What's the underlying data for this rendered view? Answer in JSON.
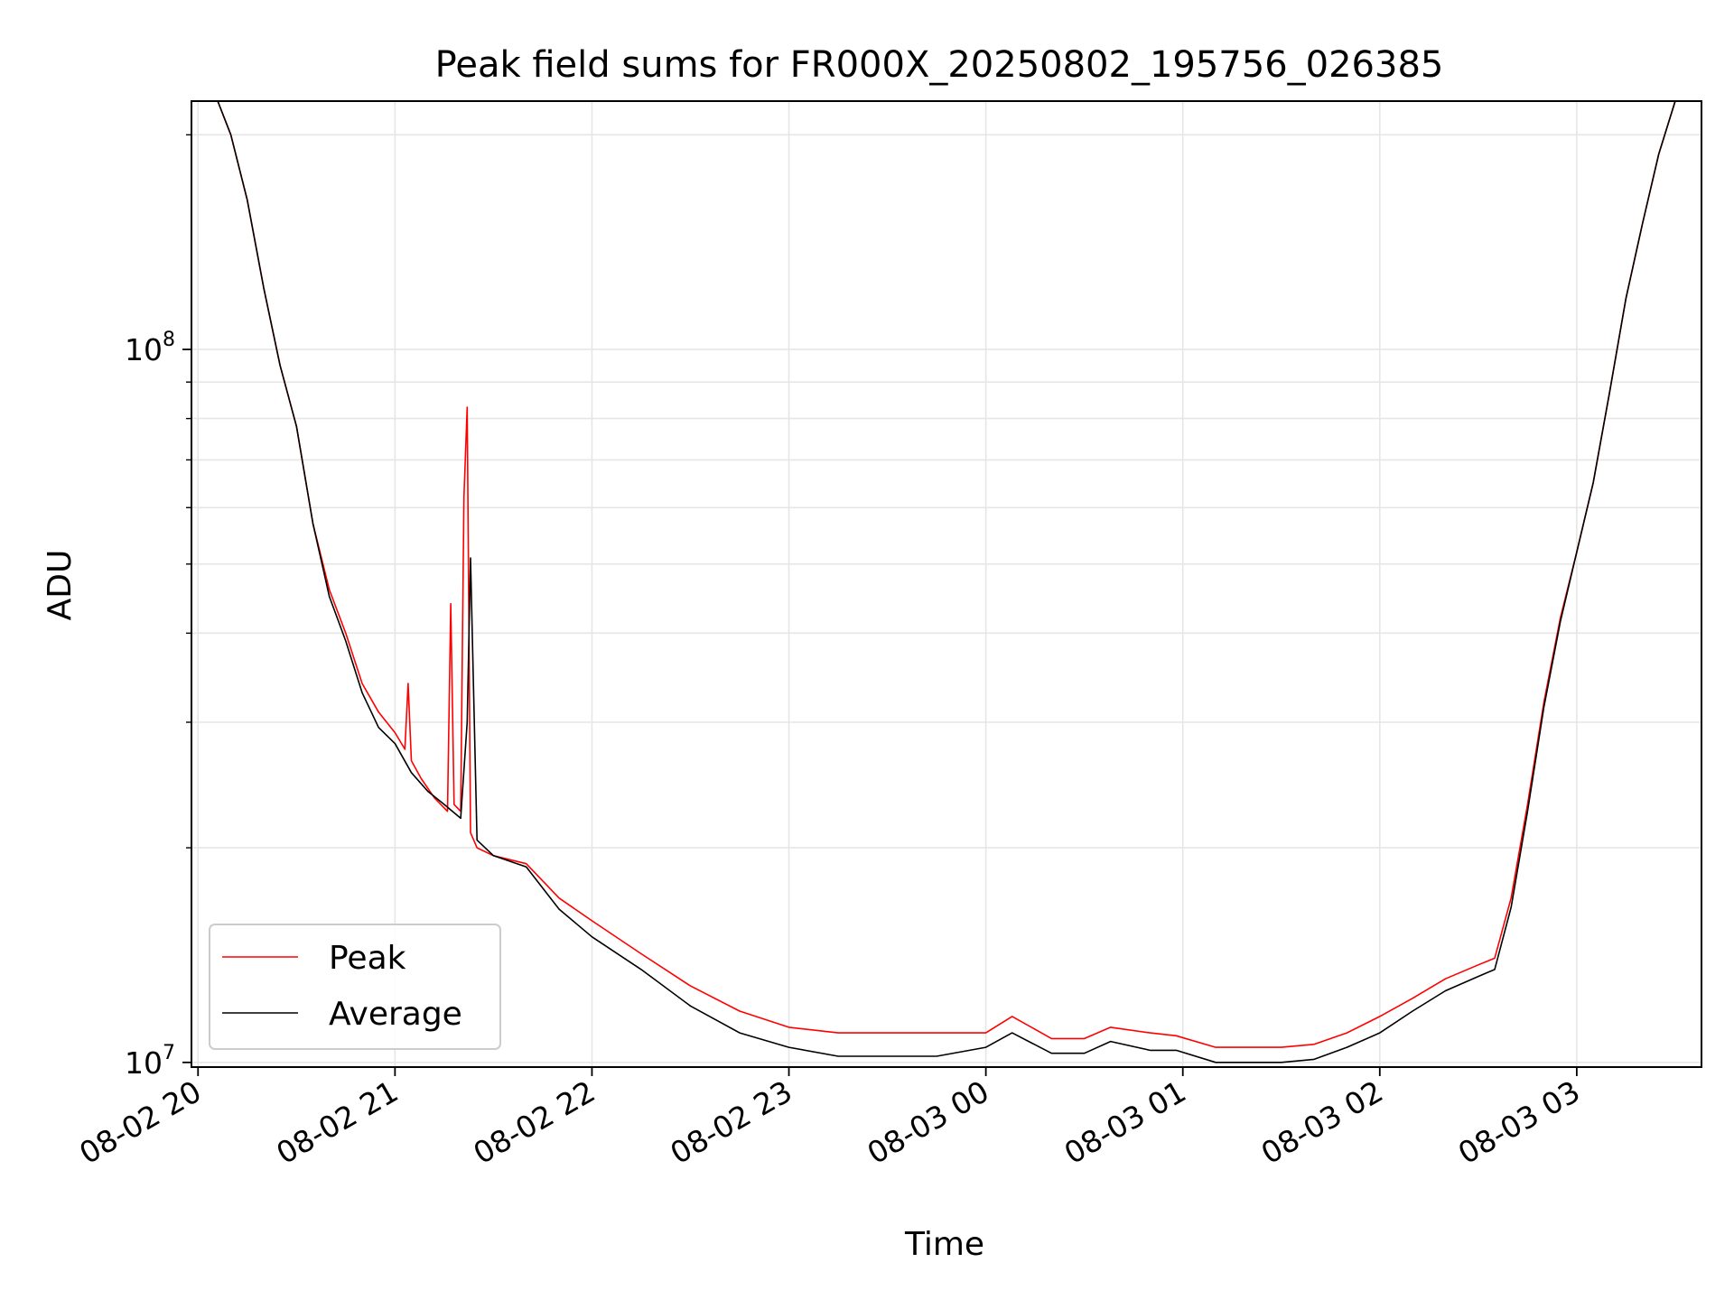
{
  "chart_data": {
    "type": "line",
    "title": "Peak field sums for FR000X_20250802_195756_026385",
    "xlabel": "Time",
    "ylabel": "ADU",
    "y_scale": "log",
    "ylim": [
      9850000,
      223000000
    ],
    "xlim": [
      "2025-08-02 19:58",
      "2025-08-03 03:38"
    ],
    "grid": true,
    "legend_position": "lower-left",
    "x_ticks": [
      "08-02 20",
      "08-02 21",
      "08-02 22",
      "08-02 23",
      "08-03 00",
      "08-03 01",
      "08-03 02",
      "08-03 03"
    ],
    "x_tick_times": [
      "2025-08-02 20:00",
      "2025-08-02 21:00",
      "2025-08-02 22:00",
      "2025-08-02 23:00",
      "2025-08-03 00:00",
      "2025-08-03 01:00",
      "2025-08-03 02:00",
      "2025-08-03 03:00"
    ],
    "y_tick_labels": [
      {
        "base": "10",
        "exp": "7",
        "value": 10000000
      },
      {
        "base": "10",
        "exp": "8",
        "value": 100000000
      }
    ],
    "series": [
      {
        "name": "Peak",
        "color": "#ff0000",
        "x": [
          "2025-08-02 19:58",
          "2025-08-02 20:06",
          "2025-08-02 20:10",
          "2025-08-02 20:15",
          "2025-08-02 20:20",
          "2025-08-02 20:25",
          "2025-08-02 20:30",
          "2025-08-02 20:35",
          "2025-08-02 20:40",
          "2025-08-02 20:45",
          "2025-08-02 20:50",
          "2025-08-02 20:55",
          "2025-08-02 21:00",
          "2025-08-02 21:03",
          "2025-08-02 21:04",
          "2025-08-02 21:05",
          "2025-08-02 21:08",
          "2025-08-02 21:12",
          "2025-08-02 21:16",
          "2025-08-02 21:17",
          "2025-08-02 21:18",
          "2025-08-02 21:20",
          "2025-08-02 21:21",
          "2025-08-02 21:22",
          "2025-08-02 21:23",
          "2025-08-02 21:25",
          "2025-08-02 21:30",
          "2025-08-02 21:40",
          "2025-08-02 21:50",
          "2025-08-02 22:00",
          "2025-08-02 22:15",
          "2025-08-02 22:30",
          "2025-08-02 22:45",
          "2025-08-02 23:00",
          "2025-08-02 23:15",
          "2025-08-02 23:30",
          "2025-08-02 23:45",
          "2025-08-03 00:00",
          "2025-08-03 00:08",
          "2025-08-03 00:20",
          "2025-08-03 00:30",
          "2025-08-03 00:38",
          "2025-08-03 00:50",
          "2025-08-03 00:58",
          "2025-08-03 01:10",
          "2025-08-03 01:20",
          "2025-08-03 01:30",
          "2025-08-03 01:40",
          "2025-08-03 01:50",
          "2025-08-03 02:00",
          "2025-08-03 02:10",
          "2025-08-03 02:20",
          "2025-08-03 02:30",
          "2025-08-03 02:35",
          "2025-08-03 02:40",
          "2025-08-03 02:45",
          "2025-08-03 02:50",
          "2025-08-03 02:55",
          "2025-08-03 03:00",
          "2025-08-03 03:05",
          "2025-08-03 03:10",
          "2025-08-03 03:15",
          "2025-08-03 03:20",
          "2025-08-03 03:25",
          "2025-08-03 03:30",
          "2025-08-03 03:38"
        ],
        "values": [
          223000000,
          223000000,
          200000000,
          162000000,
          122000000,
          95000000,
          78000000,
          57000000,
          46000000,
          40000000,
          34000000,
          31000000,
          29000000,
          27500000,
          34000000,
          26500000,
          25000000,
          23500000,
          22500000,
          44000000,
          23000000,
          22500000,
          62000000,
          83000000,
          21000000,
          20000000,
          19500000,
          19000000,
          17000000,
          15800000,
          14200000,
          12800000,
          11800000,
          11200000,
          11000000,
          11000000,
          11000000,
          11000000,
          11600000,
          10800000,
          10800000,
          11200000,
          11000000,
          10900000,
          10500000,
          10500000,
          10500000,
          10600000,
          11000000,
          11600000,
          12300000,
          13100000,
          13700000,
          14000000,
          17000000,
          23000000,
          32000000,
          42000000,
          52000000,
          65000000,
          87000000,
          118000000,
          150000000,
          188000000,
          223000000,
          223000000
        ]
      },
      {
        "name": "Average",
        "color": "#000000",
        "x": [
          "2025-08-02 19:58",
          "2025-08-02 20:06",
          "2025-08-02 20:10",
          "2025-08-02 20:15",
          "2025-08-02 20:20",
          "2025-08-02 20:25",
          "2025-08-02 20:30",
          "2025-08-02 20:35",
          "2025-08-02 20:40",
          "2025-08-02 20:45",
          "2025-08-02 20:50",
          "2025-08-02 20:55",
          "2025-08-02 21:00",
          "2025-08-02 21:05",
          "2025-08-02 21:10",
          "2025-08-02 21:15",
          "2025-08-02 21:20",
          "2025-08-02 21:22",
          "2025-08-02 21:23",
          "2025-08-02 21:25",
          "2025-08-02 21:30",
          "2025-08-02 21:40",
          "2025-08-02 21:50",
          "2025-08-02 22:00",
          "2025-08-02 22:15",
          "2025-08-02 22:30",
          "2025-08-02 22:45",
          "2025-08-02 23:00",
          "2025-08-02 23:15",
          "2025-08-02 23:30",
          "2025-08-02 23:45",
          "2025-08-03 00:00",
          "2025-08-03 00:08",
          "2025-08-03 00:20",
          "2025-08-03 00:30",
          "2025-08-03 00:38",
          "2025-08-03 00:50",
          "2025-08-03 00:58",
          "2025-08-03 01:10",
          "2025-08-03 01:20",
          "2025-08-03 01:30",
          "2025-08-03 01:40",
          "2025-08-03 01:50",
          "2025-08-03 02:00",
          "2025-08-03 02:10",
          "2025-08-03 02:20",
          "2025-08-03 02:30",
          "2025-08-03 02:35",
          "2025-08-03 02:40",
          "2025-08-03 02:45",
          "2025-08-03 02:50",
          "2025-08-03 02:55",
          "2025-08-03 03:00",
          "2025-08-03 03:05",
          "2025-08-03 03:10",
          "2025-08-03 03:15",
          "2025-08-03 03:20",
          "2025-08-03 03:25",
          "2025-08-03 03:30",
          "2025-08-03 03:38"
        ],
        "values": [
          223000000,
          223000000,
          200000000,
          162000000,
          122000000,
          95000000,
          78000000,
          57000000,
          45000000,
          39000000,
          33000000,
          29500000,
          28000000,
          25500000,
          24000000,
          23000000,
          22000000,
          30000000,
          51000000,
          20500000,
          19500000,
          18800000,
          16400000,
          15000000,
          13500000,
          12000000,
          11000000,
          10500000,
          10200000,
          10200000,
          10200000,
          10500000,
          11000000,
          10300000,
          10300000,
          10700000,
          10400000,
          10400000,
          10000000,
          10000000,
          10000000,
          10100000,
          10500000,
          11000000,
          11800000,
          12600000,
          13200000,
          13500000,
          16500000,
          22500000,
          31500000,
          41500000,
          52000000,
          65000000,
          87000000,
          118000000,
          150000000,
          188000000,
          223000000,
          223000000
        ]
      }
    ]
  }
}
